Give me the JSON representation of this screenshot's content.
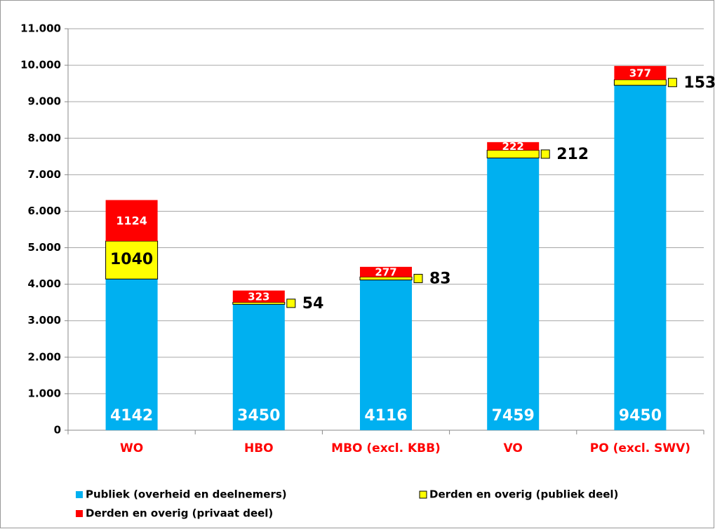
{
  "chart_data": {
    "type": "stacked-bar",
    "categories": [
      "WO",
      "HBO",
      "MBO (excl. KBB)",
      "VO",
      "PO (excl. SWV)"
    ],
    "series": [
      {
        "name": "Publiek (overheid en deelnemers)",
        "color": "#00b0f0",
        "values": [
          4142,
          3450,
          4116,
          7459,
          9450
        ]
      },
      {
        "name": "Derden en overig (publiek deel)",
        "color": "#ffff00",
        "values": [
          1040,
          54,
          83,
          212,
          153
        ]
      },
      {
        "name": "Derden en overig (privaat deel)",
        "color": "#ff0000",
        "values": [
          1124,
          323,
          277,
          222,
          377
        ]
      }
    ],
    "ylim": [
      0,
      11000
    ],
    "yticks": [
      0,
      {
        "value": 1000,
        "label": "1.000"
      },
      {
        "value": 2000,
        "label": "2.000"
      },
      {
        "value": 3000,
        "label": "3.000"
      },
      {
        "value": 4000,
        "label": "4.000"
      },
      {
        "value": 5000,
        "label": "5.000"
      },
      {
        "value": 6000,
        "label": "6.000"
      },
      {
        "value": 7000,
        "label": "7.000"
      },
      {
        "value": 8000,
        "label": "8.000"
      },
      {
        "value": 9000,
        "label": "9.000"
      },
      {
        "value": 10000,
        "label": "10.000"
      },
      {
        "value": 11000,
        "label": "11.000"
      }
    ],
    "grid": true,
    "legend": "bottom",
    "category_label_color": "#ff0000"
  }
}
